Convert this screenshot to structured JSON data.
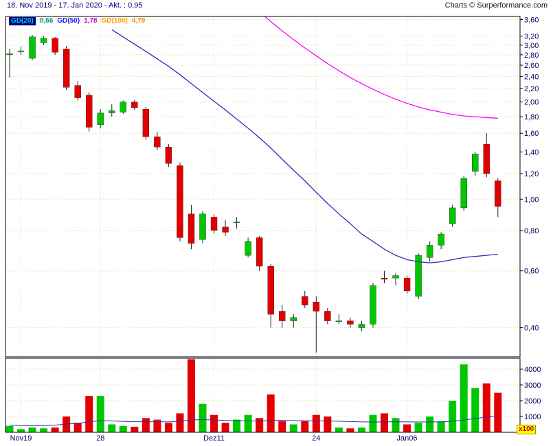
{
  "header": {
    "range_label": "18. Nov 2019 - 17. Jan 2020 - Akt. : 0,95",
    "credit": "Charts © Surperformance.com"
  },
  "legend": {
    "gd20_label": "GD(20)",
    "gd20_value": "0,66",
    "gd50_label": "GD(50)",
    "gd50_value": "1,78",
    "gd100_label": "GD(100)",
    "gd100_value": "4,79"
  },
  "colors": {
    "up": "#00c800",
    "down": "#e40000",
    "wick": "#202020",
    "gd20_line": "#2830b4",
    "gd50_line": "#ff00ff",
    "volume_ma_line": "#2830b4",
    "grid": "#dedeb0",
    "axis_text": "#000066",
    "header_text": "#000080",
    "legend_gd20_chip_bg": "#000080",
    "legend_gd20_text": "#00c8e0",
    "legend_gd20_value": "#009090",
    "legend_gd50_text": "#2020ff",
    "legend_gd50_value": "#cc00cc",
    "legend_gd100_text": "#ffa000",
    "legend_gd100_value": "#ff8c00",
    "x100_bg": "#ffff00",
    "x100_text": "#cc0000"
  },
  "chart_data": {
    "type": "candlestick",
    "subtype": "price-with-volume",
    "price_axis": {
      "scale": "log",
      "min": 0.325,
      "max": 3.68,
      "ticks": [
        {
          "v": 3.6,
          "label": "3,60"
        },
        {
          "v": 3.2,
          "label": "3,20"
        },
        {
          "v": 3.0,
          "label": "3,00"
        },
        {
          "v": 2.8,
          "label": "2,80"
        },
        {
          "v": 2.6,
          "label": "2,60"
        },
        {
          "v": 2.4,
          "label": "2,40"
        },
        {
          "v": 2.2,
          "label": "2,20"
        },
        {
          "v": 2.0,
          "label": "2,00"
        },
        {
          "v": 1.8,
          "label": "1,80"
        },
        {
          "v": 1.6,
          "label": "1,60"
        },
        {
          "v": 1.4,
          "label": "1,40"
        },
        {
          "v": 1.2,
          "label": "1,20"
        },
        {
          "v": 1.0,
          "label": "1,00"
        },
        {
          "v": 0.8,
          "label": "0,80"
        },
        {
          "v": 0.6,
          "label": "0,60"
        },
        {
          "v": 0.4,
          "label": "0,40"
        }
      ]
    },
    "volume_axis": {
      "max": 4000,
      "unit": "x100",
      "ticks": [
        {
          "v": 1000,
          "label": "1000"
        },
        {
          "v": 2000,
          "label": "2000"
        },
        {
          "v": 3000,
          "label": "3000"
        },
        {
          "v": 4000,
          "label": "4000"
        }
      ]
    },
    "x_axis": {
      "labels": [
        {
          "index": 1,
          "text": "Nov19"
        },
        {
          "index": 8,
          "text": "28"
        },
        {
          "index": 18,
          "text": "Dez11"
        },
        {
          "index": 27,
          "text": "24"
        },
        {
          "index": 35,
          "text": "Jan06"
        }
      ]
    },
    "candles_format": [
      "open",
      "high",
      "low",
      "close",
      "volume_x100"
    ],
    "candles": [
      [
        2.8,
        2.92,
        2.38,
        2.82,
        400
      ],
      [
        2.86,
        2.96,
        2.8,
        2.88,
        200
      ],
      [
        2.73,
        3.22,
        2.7,
        3.18,
        300
      ],
      [
        3.05,
        3.2,
        3.0,
        3.15,
        250
      ],
      [
        3.15,
        3.18,
        2.8,
        2.85,
        300
      ],
      [
        2.92,
        2.98,
        2.18,
        2.22,
        1000
      ],
      [
        2.25,
        2.32,
        2.02,
        2.06,
        600
      ],
      [
        2.1,
        2.14,
        1.62,
        1.67,
        2300
      ],
      [
        1.7,
        1.9,
        1.66,
        1.85,
        2300
      ],
      [
        1.85,
        1.97,
        1.8,
        1.88,
        500
      ],
      [
        1.86,
        2.02,
        1.84,
        2.0,
        400
      ],
      [
        2.0,
        2.03,
        1.89,
        1.92,
        350
      ],
      [
        1.9,
        1.93,
        1.53,
        1.56,
        900
      ],
      [
        1.56,
        1.61,
        1.42,
        1.45,
        800
      ],
      [
        1.45,
        1.48,
        1.26,
        1.29,
        600
      ],
      [
        1.27,
        1.3,
        0.74,
        0.76,
        1200
      ],
      [
        0.9,
        0.96,
        0.7,
        0.73,
        4800
      ],
      [
        0.75,
        0.92,
        0.73,
        0.9,
        1800
      ],
      [
        0.88,
        0.9,
        0.78,
        0.8,
        1100
      ],
      [
        0.82,
        0.86,
        0.77,
        0.79,
        600
      ],
      [
        0.85,
        0.88,
        0.81,
        0.85,
        800
      ],
      [
        0.67,
        0.76,
        0.66,
        0.74,
        1100
      ],
      [
        0.76,
        0.77,
        0.6,
        0.62,
        900
      ],
      [
        0.62,
        0.63,
        0.4,
        0.44,
        2400
      ],
      [
        0.45,
        0.47,
        0.4,
        0.42,
        700
      ],
      [
        0.42,
        0.44,
        0.4,
        0.43,
        500
      ],
      [
        0.5,
        0.52,
        0.46,
        0.47,
        700
      ],
      [
        0.48,
        0.5,
        0.335,
        0.45,
        1100
      ],
      [
        0.45,
        0.46,
        0.41,
        0.42,
        1000
      ],
      [
        0.42,
        0.44,
        0.41,
        0.42,
        300
      ],
      [
        0.42,
        0.43,
        0.4,
        0.41,
        250
      ],
      [
        0.4,
        0.42,
        0.39,
        0.41,
        300
      ],
      [
        0.41,
        0.55,
        0.4,
        0.54,
        1100
      ],
      [
        0.57,
        0.6,
        0.55,
        0.565,
        1200
      ],
      [
        0.57,
        0.59,
        0.54,
        0.58,
        900
      ],
      [
        0.57,
        0.58,
        0.51,
        0.52,
        500
      ],
      [
        0.5,
        0.68,
        0.49,
        0.67,
        600
      ],
      [
        0.66,
        0.74,
        0.64,
        0.72,
        1000
      ],
      [
        0.72,
        0.79,
        0.7,
        0.78,
        700
      ],
      [
        0.84,
        0.96,
        0.82,
        0.94,
        2000
      ],
      [
        0.94,
        1.18,
        0.92,
        1.16,
        4300
      ],
      [
        1.22,
        1.4,
        1.18,
        1.38,
        2800
      ],
      [
        1.48,
        1.6,
        1.17,
        1.2,
        3100
      ],
      [
        1.14,
        1.16,
        0.88,
        0.95,
        2500
      ]
    ],
    "gd20": {
      "name": "GD(20)",
      "current": 0.66,
      "start_index": 9,
      "values": [
        3.35,
        3.18,
        3.02,
        2.87,
        2.72,
        2.58,
        2.43,
        2.28,
        2.14,
        2.01,
        1.89,
        1.77,
        1.66,
        1.55,
        1.44,
        1.33,
        1.23,
        1.14,
        1.05,
        0.97,
        0.9,
        0.84,
        0.78,
        0.74,
        0.7,
        0.67,
        0.65,
        0.64,
        0.635,
        0.64,
        0.65,
        0.66,
        0.665,
        0.67,
        0.675
      ]
    },
    "gd50": {
      "name": "GD(50)",
      "current": 1.78,
      "start_index": 22,
      "values": [
        3.8,
        3.55,
        3.32,
        3.12,
        2.94,
        2.78,
        2.63,
        2.5,
        2.38,
        2.28,
        2.19,
        2.11,
        2.04,
        1.98,
        1.93,
        1.89,
        1.86,
        1.83,
        1.81,
        1.8,
        1.79,
        1.78
      ]
    },
    "gd100": {
      "name": "GD(100)",
      "current": 4.79,
      "note": "above visible price range"
    },
    "volume_ma": {
      "values": [
        450,
        430,
        420,
        430,
        450,
        520,
        560,
        660,
        740,
        720,
        690,
        670,
        670,
        670,
        660,
        700,
        790,
        800,
        780,
        750,
        730,
        720,
        710,
        750,
        760,
        740,
        730,
        730,
        720,
        700,
        680,
        660,
        650,
        660,
        670,
        660,
        650,
        650,
        660,
        700,
        780,
        870,
        960,
        1060
      ]
    }
  }
}
